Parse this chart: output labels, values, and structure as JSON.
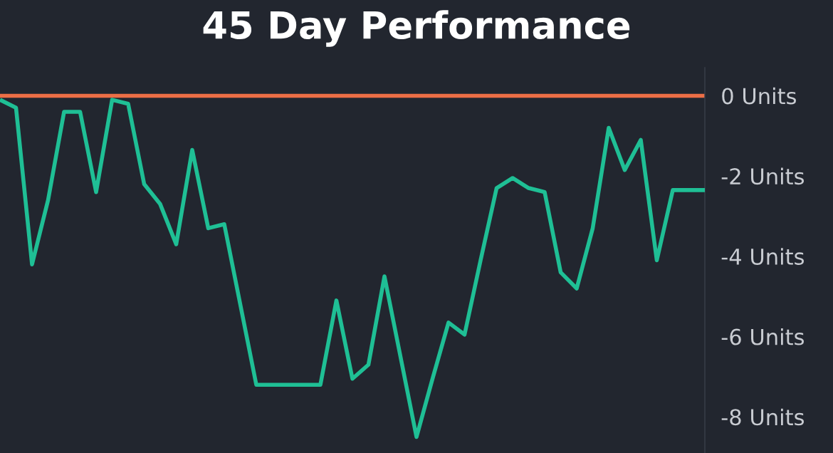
{
  "chart_data": {
    "type": "line",
    "title": "45 Day Performance",
    "categories": [
      null,
      null,
      null,
      null,
      null,
      null,
      null,
      null,
      null,
      null,
      null,
      null,
      null,
      null,
      null,
      null,
      null,
      null,
      null,
      null,
      null,
      null,
      null,
      null,
      null,
      null,
      null,
      null,
      null,
      null,
      null,
      null,
      null,
      null,
      null,
      null,
      null,
      null,
      null,
      null,
      null,
      null,
      null,
      null,
      null
    ],
    "series": [
      {
        "color": "#1fbf95",
        "values": [
          -0.1,
          -0.3,
          -4.2,
          -2.6,
          -0.4,
          -0.4,
          -2.4,
          -0.1,
          -0.2,
          -2.2,
          -2.7,
          -3.7,
          -1.35,
          -3.3,
          -3.2,
          -5.2,
          -7.2,
          -7.2,
          -7.2,
          -7.2,
          -7.2,
          -5.1,
          -7.05,
          -6.7,
          -4.5,
          -6.5,
          -8.5,
          -7.05,
          -5.65,
          -5.95,
          -4.1,
          -2.3,
          -2.05,
          -2.3,
          -2.4,
          -4.4,
          -4.8,
          -3.3,
          -0.8,
          -1.85,
          -1.1,
          -4.1,
          -2.35,
          -2.35,
          -2.35
        ]
      }
    ],
    "ylim": [
      -8.9,
      0.7
    ],
    "yticks": [
      {
        "value": 0,
        "label": "0 Units"
      },
      {
        "value": -2,
        "label": "-2 Units"
      },
      {
        "value": -4,
        "label": "-4 Units"
      },
      {
        "value": -6,
        "label": "-6 Units"
      },
      {
        "value": -8,
        "label": "-8 Units"
      }
    ],
    "ref_lines": [
      {
        "axis": "y",
        "value": 0,
        "color": "#ec6e46"
      }
    ],
    "grid": false,
    "marker": "none",
    "line_style": "solid"
  }
}
